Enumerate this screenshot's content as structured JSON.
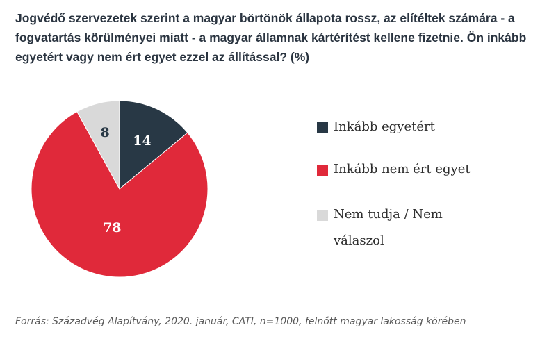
{
  "title": "Jogvédő szervezetek szerint a magyar börtönök állapota rossz, az elítéltek számára - a fogvatartás körülményei miatt - a magyar államnak kártérítést kellene fizetnie. Ön inkább egyetért vagy nem ért egyet ezzel az állítással? (%)",
  "source": "Forrás: Századvég Alapítvány, 2020. január, CATI, n=1000, felnőtt magyar lakosság körében",
  "chart_data": {
    "type": "pie",
    "title": "Jogvédő szervezetek szerint a magyar börtönök állapota rossz, az elítéltek számára - a fogvatartás körülményei miatt - a magyar államnak kártérítést kellene fizetnie. Ön inkább egyetért vagy nem ért egyet ezzel az állítással? (%)",
    "categories": [
      "Inkább egyetért",
      "Inkább nem ért egyet",
      "Nem tudja / Nem válaszol"
    ],
    "values": [
      14,
      78,
      8
    ],
    "data_labels": [
      "14",
      "78",
      "8"
    ],
    "colors": [
      "#283845",
      "#e0293a",
      "#d9d9d9"
    ],
    "label_colors": [
      "#ffffff",
      "#ffffff",
      "#283845"
    ],
    "legend_position": "right",
    "start_angle": "12 o'clock",
    "direction": "clockwise"
  },
  "legend": [
    {
      "label": "Inkább egyetért",
      "color": "#283845"
    },
    {
      "label": "Inkább nem ért egyet",
      "color": "#e0293a"
    },
    {
      "label": "Nem tudja / Nem válaszol",
      "color": "#d9d9d9"
    }
  ]
}
